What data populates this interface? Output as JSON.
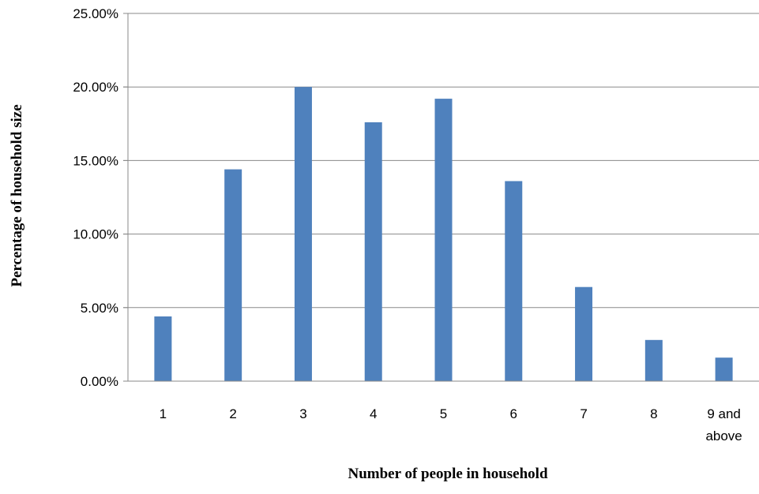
{
  "chart_data": {
    "type": "bar",
    "categories": [
      "1",
      "2",
      "3",
      "4",
      "5",
      "6",
      "7",
      "8",
      "9 and above"
    ],
    "values": [
      4.4,
      14.4,
      20.0,
      17.6,
      19.2,
      13.6,
      6.4,
      2.8,
      1.6
    ],
    "value_unit": "percent",
    "xlabel": "Number of people in household",
    "ylabel": "Percentage of household size",
    "ylim": [
      0,
      25
    ],
    "yticks": [
      "0.00%",
      "5.00%",
      "10.00%",
      "15.00%",
      "20.00%",
      "25.00%"
    ],
    "grid": true,
    "legend": "none",
    "bar_color": "#4f81bd"
  }
}
